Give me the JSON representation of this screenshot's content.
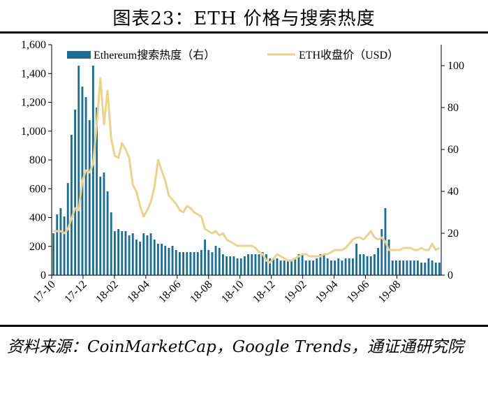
{
  "title": "图表23：ETH 价格与搜索热度",
  "source": "资料来源：CoinMarketCap，Google Trends，通证通研究院",
  "chart_data": {
    "type": "bar+line",
    "x_tick_labels": [
      "17-10",
      "17-12",
      "18-02",
      "18-04",
      "18-06",
      "18-08",
      "18-10",
      "18-12",
      "19-02",
      "19-04",
      "19-06",
      "19-08"
    ],
    "x_tick_weeks": [
      0,
      8.7,
      17.4,
      26.1,
      34.8,
      43.5,
      52.2,
      60.9,
      69.6,
      78.3,
      87.0,
      95.7
    ],
    "left_axis": {
      "ylim": [
        0,
        1600
      ],
      "ticks": [
        "0",
        "200",
        "400",
        "600",
        "800",
        "1,000",
        "1,200",
        "1,400",
        "1,600"
      ]
    },
    "right_axis": {
      "ylim": [
        0,
        110
      ],
      "ticks": [
        "0",
        "20",
        "40",
        "60",
        "80",
        "100"
      ]
    },
    "grid": false,
    "legend_position": "top",
    "series": [
      {
        "name": "Ethereum搜索热度（右）",
        "type": "bar",
        "axis": "right",
        "color": "#1c6e93",
        "values": [
          20,
          29,
          32,
          28,
          44,
          67,
          79,
          100,
          90,
          85,
          74,
          100,
          80,
          47,
          49,
          40,
          30,
          21,
          22,
          21,
          21,
          19,
          20,
          17,
          16,
          20,
          19,
          20,
          17,
          15,
          15,
          14,
          13,
          14,
          12,
          11,
          11,
          11,
          11,
          11,
          11,
          12,
          17,
          12,
          11,
          14,
          13,
          10,
          9,
          9,
          9,
          8,
          8,
          9,
          10,
          10,
          10,
          10,
          11,
          10,
          8,
          8,
          8,
          7,
          7,
          7,
          7,
          8,
          10,
          10,
          7,
          7,
          7,
          8,
          10,
          10,
          8,
          7,
          7,
          8,
          7,
          8,
          8,
          8,
          15,
          10,
          10,
          9,
          9,
          10,
          13,
          22,
          32,
          17,
          7,
          7,
          7,
          7,
          7,
          7,
          7,
          7,
          6,
          6,
          8,
          7,
          6,
          6
        ]
      },
      {
        "name": "ETH收盘价（USD）",
        "type": "line",
        "axis": "right",
        "color": "#ead28f",
        "values": [
          21,
          21,
          21,
          20,
          22,
          27,
          32,
          31,
          45,
          50,
          49,
          53,
          72,
          94,
          72,
          88,
          65,
          57,
          56,
          63,
          60,
          56,
          43,
          40,
          33,
          28,
          31,
          35,
          42,
          55,
          50,
          45,
          38,
          36,
          34,
          31,
          30,
          33,
          32,
          30,
          29,
          28,
          22,
          21,
          20,
          21,
          19,
          20,
          17,
          16,
          15,
          14,
          14,
          14,
          14,
          14,
          13,
          11,
          10,
          7,
          6,
          8,
          10,
          9,
          8,
          7,
          7,
          8,
          9,
          10,
          10,
          9,
          9,
          9,
          9,
          10,
          10,
          11,
          12,
          12,
          12,
          13,
          15,
          17,
          18,
          18,
          17,
          19,
          21,
          18,
          17,
          18,
          16,
          12,
          12,
          12,
          12,
          13,
          13,
          13,
          12,
          12,
          13,
          12,
          12,
          15,
          12,
          13
        ]
      }
    ]
  }
}
